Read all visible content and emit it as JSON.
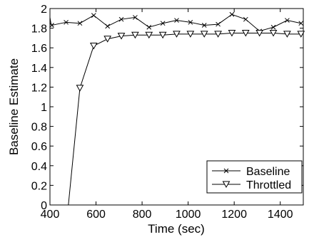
{
  "chart_data": {
    "type": "line",
    "title": "",
    "xlabel": "Time (sec)",
    "ylabel": "Baseline Estimate",
    "xlim": [
      400,
      1500
    ],
    "ylim": [
      0,
      2
    ],
    "xticks": [
      400,
      600,
      800,
      1000,
      1200,
      1400
    ],
    "yticks": [
      0,
      0.2,
      0.4,
      0.6,
      0.8,
      1,
      1.2,
      1.4,
      1.6,
      1.8,
      2
    ],
    "grid": false,
    "legend_position": "bottom-right",
    "series": [
      {
        "name": "Baseline",
        "marker": "x",
        "color": "#000000",
        "x": [
          400,
          404,
          408,
          470,
          530,
          590,
          650,
          710,
          770,
          830,
          890,
          950,
          1010,
          1070,
          1130,
          1190,
          1250,
          1310,
          1370,
          1430,
          1490
        ],
        "y": [
          1.91,
          1.85,
          1.83,
          1.86,
          1.85,
          1.93,
          1.82,
          1.89,
          1.91,
          1.81,
          1.85,
          1.88,
          1.86,
          1.83,
          1.84,
          1.94,
          1.89,
          1.77,
          1.81,
          1.88,
          1.85
        ]
      },
      {
        "name": "Throttled",
        "marker": "triangle-down",
        "color": "#000000",
        "x": [
          480,
          530,
          590,
          650,
          710,
          770,
          830,
          890,
          950,
          1010,
          1070,
          1130,
          1190,
          1250,
          1310,
          1370,
          1430,
          1490
        ],
        "y": [
          0,
          1.19,
          1.62,
          1.69,
          1.72,
          1.73,
          1.73,
          1.73,
          1.74,
          1.74,
          1.74,
          1.74,
          1.75,
          1.75,
          1.75,
          1.75,
          1.74,
          1.74
        ]
      }
    ]
  }
}
